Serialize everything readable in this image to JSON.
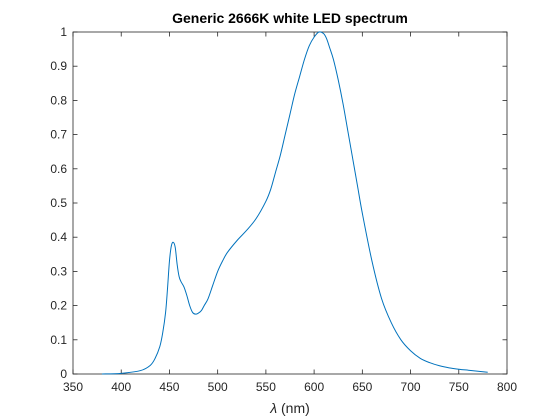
{
  "chart_data": {
    "type": "line",
    "title": "Generic 2666K white LED spectrum",
    "xlabel_symbol": "λ",
    "xlabel_unit": " (nm)",
    "ylabel": "",
    "xlim": [
      350,
      800
    ],
    "ylim": [
      0,
      1
    ],
    "grid": false,
    "legend": "none",
    "xticks": [
      350,
      400,
      450,
      500,
      550,
      600,
      650,
      700,
      750,
      800
    ],
    "yticks": [
      0,
      0.1,
      0.2,
      0.3,
      0.4,
      0.5,
      0.6,
      0.7,
      0.8,
      0.9,
      1
    ],
    "ytick_labels": [
      "0",
      "0.1",
      "0.2",
      "0.3",
      "0.4",
      "0.5",
      "0.6",
      "0.7",
      "0.8",
      "0.9",
      "1"
    ],
    "line_color": "#0072BD",
    "axis_color": "#262626",
    "series": [
      {
        "x": [
          380,
          400,
          420,
          430,
          435,
          440,
          443,
          446,
          448,
          450,
          452,
          454,
          456,
          458,
          460,
          462,
          465,
          468,
          471,
          474,
          477,
          480,
          483,
          486,
          490,
          495,
          500,
          505,
          510,
          520,
          530,
          540,
          550,
          555,
          560,
          565,
          570,
          575,
          580,
          585,
          590,
          595,
          600,
          605,
          610,
          613,
          616,
          620,
          625,
          630,
          635,
          640,
          645,
          650,
          660,
          670,
          680,
          690,
          700,
          710,
          720,
          730,
          740,
          750,
          760,
          770,
          780
        ],
        "y": [
          0,
          0.002,
          0.01,
          0.025,
          0.045,
          0.08,
          0.12,
          0.18,
          0.25,
          0.33,
          0.375,
          0.385,
          0.37,
          0.32,
          0.285,
          0.27,
          0.255,
          0.23,
          0.2,
          0.18,
          0.175,
          0.178,
          0.185,
          0.2,
          0.22,
          0.26,
          0.3,
          0.33,
          0.355,
          0.39,
          0.42,
          0.455,
          0.505,
          0.54,
          0.59,
          0.64,
          0.7,
          0.76,
          0.82,
          0.87,
          0.92,
          0.96,
          0.985,
          1.0,
          0.995,
          0.98,
          0.955,
          0.92,
          0.86,
          0.79,
          0.71,
          0.63,
          0.55,
          0.47,
          0.33,
          0.22,
          0.15,
          0.1,
          0.068,
          0.046,
          0.033,
          0.024,
          0.018,
          0.014,
          0.011,
          0.008,
          0.005
        ]
      }
    ]
  }
}
